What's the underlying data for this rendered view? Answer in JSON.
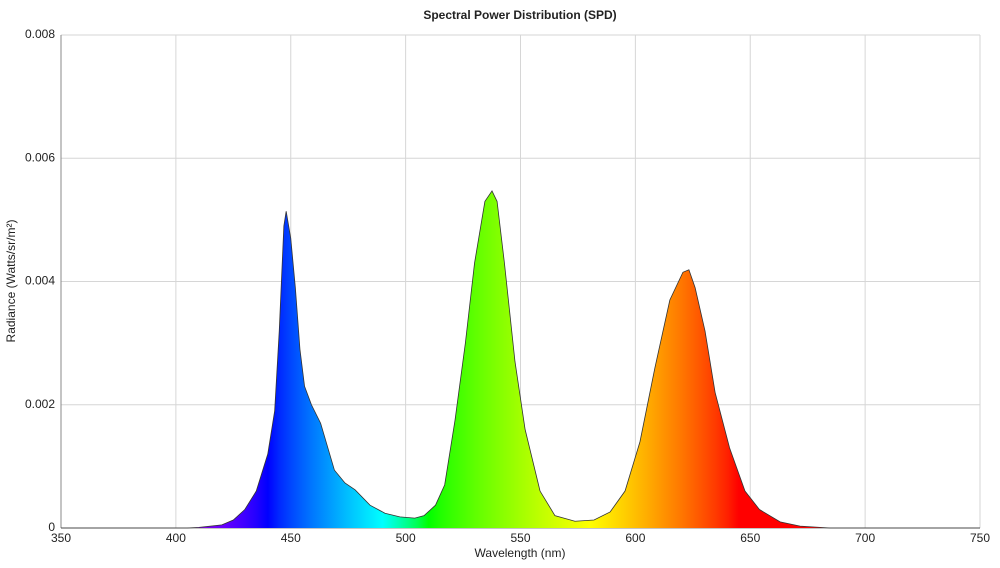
{
  "chart_data": {
    "type": "area",
    "title": "Spectral Power Distribution (SPD)",
    "x_label": "Wavelength (nm)",
    "y_label": "Radiance (Watts/sr/m²)",
    "x": [
      350,
      400,
      405,
      410,
      420,
      425,
      430,
      435,
      440,
      443,
      445,
      447,
      448,
      450,
      452,
      454,
      456,
      459,
      463,
      469,
      473.6,
      478,
      484.5,
      491,
      497.5,
      504,
      508,
      513,
      517,
      521.5,
      526,
      530,
      534.5,
      537.6,
      539.8,
      543,
      547.6,
      552,
      558.5,
      565,
      573.7,
      582,
      589,
      595.5,
      602,
      608.5,
      615,
      620.7,
      623.3,
      626,
      630.3,
      634.7,
      641,
      647.7,
      654,
      663,
      671.7,
      684.7,
      750
    ],
    "values": [
      0,
      0,
      0,
      1e-05,
      5e-05,
      0.00013,
      0.0003,
      0.0006,
      0.0012,
      0.0019,
      0.0032,
      0.0049,
      0.00514,
      0.0047,
      0.0039,
      0.0029,
      0.0023,
      0.002,
      0.0017,
      0.00094,
      0.00073,
      0.00062,
      0.00037,
      0.00024,
      0.00018,
      0.00016,
      0.0002,
      0.00037,
      0.0007,
      0.00175,
      0.003,
      0.0043,
      0.0053,
      0.00547,
      0.0053,
      0.0043,
      0.0027,
      0.0016,
      0.0006,
      0.0002,
      0.00011,
      0.00013,
      0.00026,
      0.0006,
      0.0014,
      0.0026,
      0.0037,
      0.00415,
      0.00419,
      0.0039,
      0.0032,
      0.0022,
      0.0013,
      0.0006,
      0.0003,
      0.0001,
      3e-05,
      0,
      0
    ],
    "xlim": [
      350,
      750
    ],
    "ylim": [
      0,
      0.008
    ],
    "xticks": [
      350,
      400,
      450,
      500,
      550,
      600,
      650,
      700,
      750
    ],
    "yticks": [
      0,
      0.002,
      0.004,
      0.006,
      0.008
    ],
    "grid": true,
    "line_color": "#333333"
  }
}
